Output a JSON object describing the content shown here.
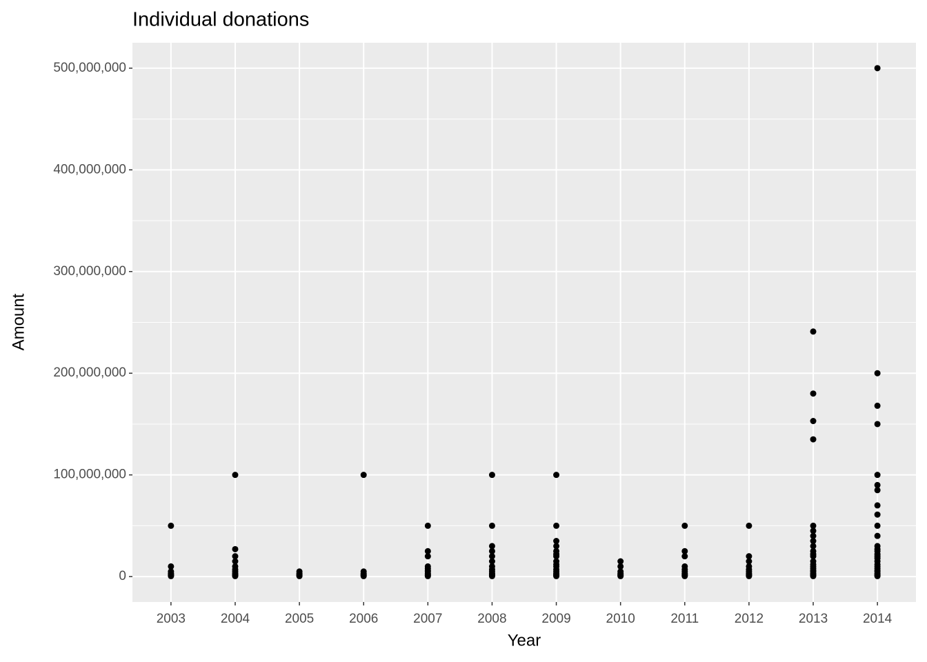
{
  "chart_data": {
    "type": "scatter",
    "title": "Individual donations",
    "x_label": "Year",
    "y_label": "Amount",
    "color": "#000000",
    "panel_color": "#ebebeb",
    "grid": true,
    "xlim": [
      2002.4,
      2014.6
    ],
    "xticks": [
      2003,
      2004,
      2005,
      2006,
      2007,
      2008,
      2009,
      2010,
      2011,
      2012,
      2013,
      2014
    ],
    "ylim": [
      -25000000,
      525000000
    ],
    "yticks": [
      0,
      {
        "value": 100000000,
        "label": "100,000,000"
      },
      {
        "value": 200000000,
        "label": "200,000,000"
      },
      {
        "value": 300000000,
        "label": "300,000,000"
      },
      {
        "value": 400000000,
        "label": "400,000,000"
      },
      {
        "value": 500000000,
        "label": "500,000,000"
      }
    ],
    "yminor": [
      50000000,
      150000000,
      250000000,
      350000000,
      450000000
    ],
    "x": [
      2003,
      2003,
      2003,
      2003,
      2003,
      2003,
      2003,
      2004,
      2004,
      2004,
      2004,
      2004,
      2004,
      2004,
      2004,
      2004,
      2004,
      2004,
      2005,
      2005,
      2005,
      2005,
      2005,
      2006,
      2006,
      2006,
      2006,
      2006,
      2006,
      2007,
      2007,
      2007,
      2007,
      2007,
      2007,
      2007,
      2007,
      2007,
      2007,
      2007,
      2008,
      2008,
      2008,
      2008,
      2008,
      2008,
      2008,
      2008,
      2008,
      2008,
      2008,
      2008,
      2008,
      2009,
      2009,
      2009,
      2009,
      2009,
      2009,
      2009,
      2009,
      2009,
      2009,
      2009,
      2009,
      2009,
      2009,
      2009,
      2009,
      2010,
      2010,
      2010,
      2010,
      2010,
      2010,
      2010,
      2011,
      2011,
      2011,
      2011,
      2011,
      2011,
      2011,
      2011,
      2011,
      2011,
      2012,
      2012,
      2012,
      2012,
      2012,
      2012,
      2012,
      2012,
      2012,
      2012,
      2013,
      2013,
      2013,
      2013,
      2013,
      2013,
      2013,
      2013,
      2013,
      2013,
      2013,
      2013,
      2013,
      2013,
      2013,
      2013,
      2013,
      2013,
      2013,
      2013,
      2013,
      2013,
      2014,
      2014,
      2014,
      2014,
      2014,
      2014,
      2014,
      2014,
      2014,
      2014,
      2014,
      2014,
      2014,
      2014,
      2014,
      2014,
      2014,
      2014,
      2014,
      2014,
      2014,
      2014,
      2014,
      2014,
      2014,
      2014,
      2014
    ],
    "y": [
      50000000,
      10000000,
      5000000,
      3000000,
      2000000,
      1000000,
      500000,
      100000000,
      27000000,
      20000000,
      15000000,
      10000000,
      7000000,
      5000000,
      3000000,
      2000000,
      1000000,
      500000,
      5000000,
      3000000,
      2000000,
      1000000,
      500000,
      100000000,
      5000000,
      3000000,
      2000000,
      1000000,
      500000,
      50000000,
      25000000,
      20000000,
      10000000,
      8000000,
      6000000,
      5000000,
      3000000,
      2000000,
      1000000,
      500000,
      100000000,
      50000000,
      30000000,
      25000000,
      20000000,
      15000000,
      10000000,
      7000000,
      5000000,
      3000000,
      2000000,
      1000000,
      500000,
      100000000,
      50000000,
      35000000,
      30000000,
      25000000,
      22000000,
      20000000,
      15000000,
      12000000,
      10000000,
      7000000,
      5000000,
      3000000,
      2000000,
      1000000,
      500000,
      15000000,
      10000000,
      5000000,
      3000000,
      2000000,
      1000000,
      500000,
      50000000,
      25000000,
      20000000,
      10000000,
      7000000,
      5000000,
      3000000,
      2000000,
      1000000,
      500000,
      50000000,
      20000000,
      15000000,
      10000000,
      7000000,
      5000000,
      3000000,
      2000000,
      1000000,
      500000,
      241000000,
      180000000,
      153000000,
      135000000,
      50000000,
      45000000,
      40000000,
      35000000,
      30000000,
      25000000,
      22000000,
      20000000,
      15000000,
      12000000,
      10000000,
      8000000,
      6000000,
      5000000,
      3000000,
      2000000,
      1000000,
      500000,
      500000000,
      200000000,
      168000000,
      150000000,
      100000000,
      90000000,
      85000000,
      70000000,
      61000000,
      50000000,
      40000000,
      30000000,
      27000000,
      25000000,
      22000000,
      20000000,
      18000000,
      15000000,
      12000000,
      10000000,
      8000000,
      6000000,
      5000000,
      3000000,
      2000000,
      1000000,
      500000
    ]
  }
}
